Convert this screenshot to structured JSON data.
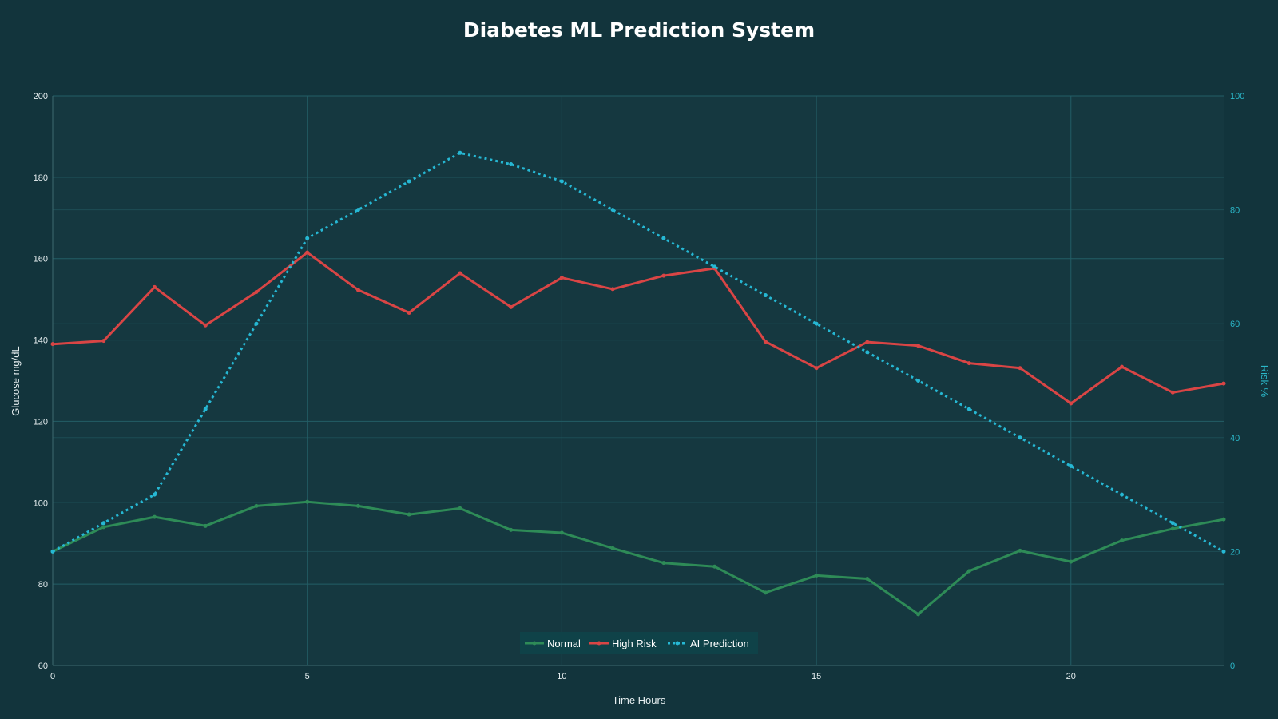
{
  "chart_data": {
    "type": "line",
    "title": "Diabetes ML Prediction System",
    "xlabel": "Time Hours",
    "ylabel": "Glucose mg/dL",
    "y2label": "Risk %",
    "xlim": [
      0,
      23
    ],
    "ylim": [
      60,
      200
    ],
    "y2lim": [
      0,
      100
    ],
    "x_ticks": [
      0,
      5,
      10,
      15,
      20
    ],
    "y_ticks": [
      60,
      80,
      100,
      120,
      140,
      160,
      180,
      200
    ],
    "y2_ticks": [
      0,
      20,
      40,
      60,
      80,
      100
    ],
    "grid": true,
    "legend_position": "bottom-center",
    "x": [
      0,
      1,
      2,
      3,
      4,
      5,
      6,
      7,
      8,
      9,
      10,
      11,
      12,
      13,
      14,
      15,
      16,
      17,
      18,
      19,
      20,
      21,
      22,
      23
    ],
    "series": [
      {
        "name": "Normal",
        "axis": "left",
        "color": "#2e8b57",
        "style": "solid",
        "values": [
          88,
          94,
          96.5,
          94.3,
          99.2,
          100.2,
          99.2,
          97.1,
          98.6,
          93.3,
          92.6,
          88.8,
          85.2,
          84.3,
          77.9,
          82.1,
          81.3,
          72.6,
          83.2,
          88.2,
          85.5,
          90.7,
          93.6,
          95.9
        ]
      },
      {
        "name": "High Risk",
        "axis": "left",
        "color": "#d94545",
        "style": "solid",
        "values": [
          139,
          139.8,
          153,
          143.6,
          151.8,
          161.5,
          152.3,
          146.7,
          156.4,
          148.1,
          155.3,
          152.5,
          155.8,
          157.6,
          139.6,
          133.1,
          139.5,
          138.6,
          134.3,
          133.1,
          124.4,
          133.4,
          127.1,
          129.3
        ]
      },
      {
        "name": "AI Prediction",
        "axis": "right",
        "color": "#26b8d4",
        "style": "dotted",
        "values": [
          20,
          25,
          30,
          45,
          60,
          75,
          80,
          85,
          90,
          88,
          85,
          80,
          75,
          70,
          65,
          60,
          55,
          50,
          45,
          40,
          35,
          30,
          25,
          20
        ]
      }
    ]
  }
}
